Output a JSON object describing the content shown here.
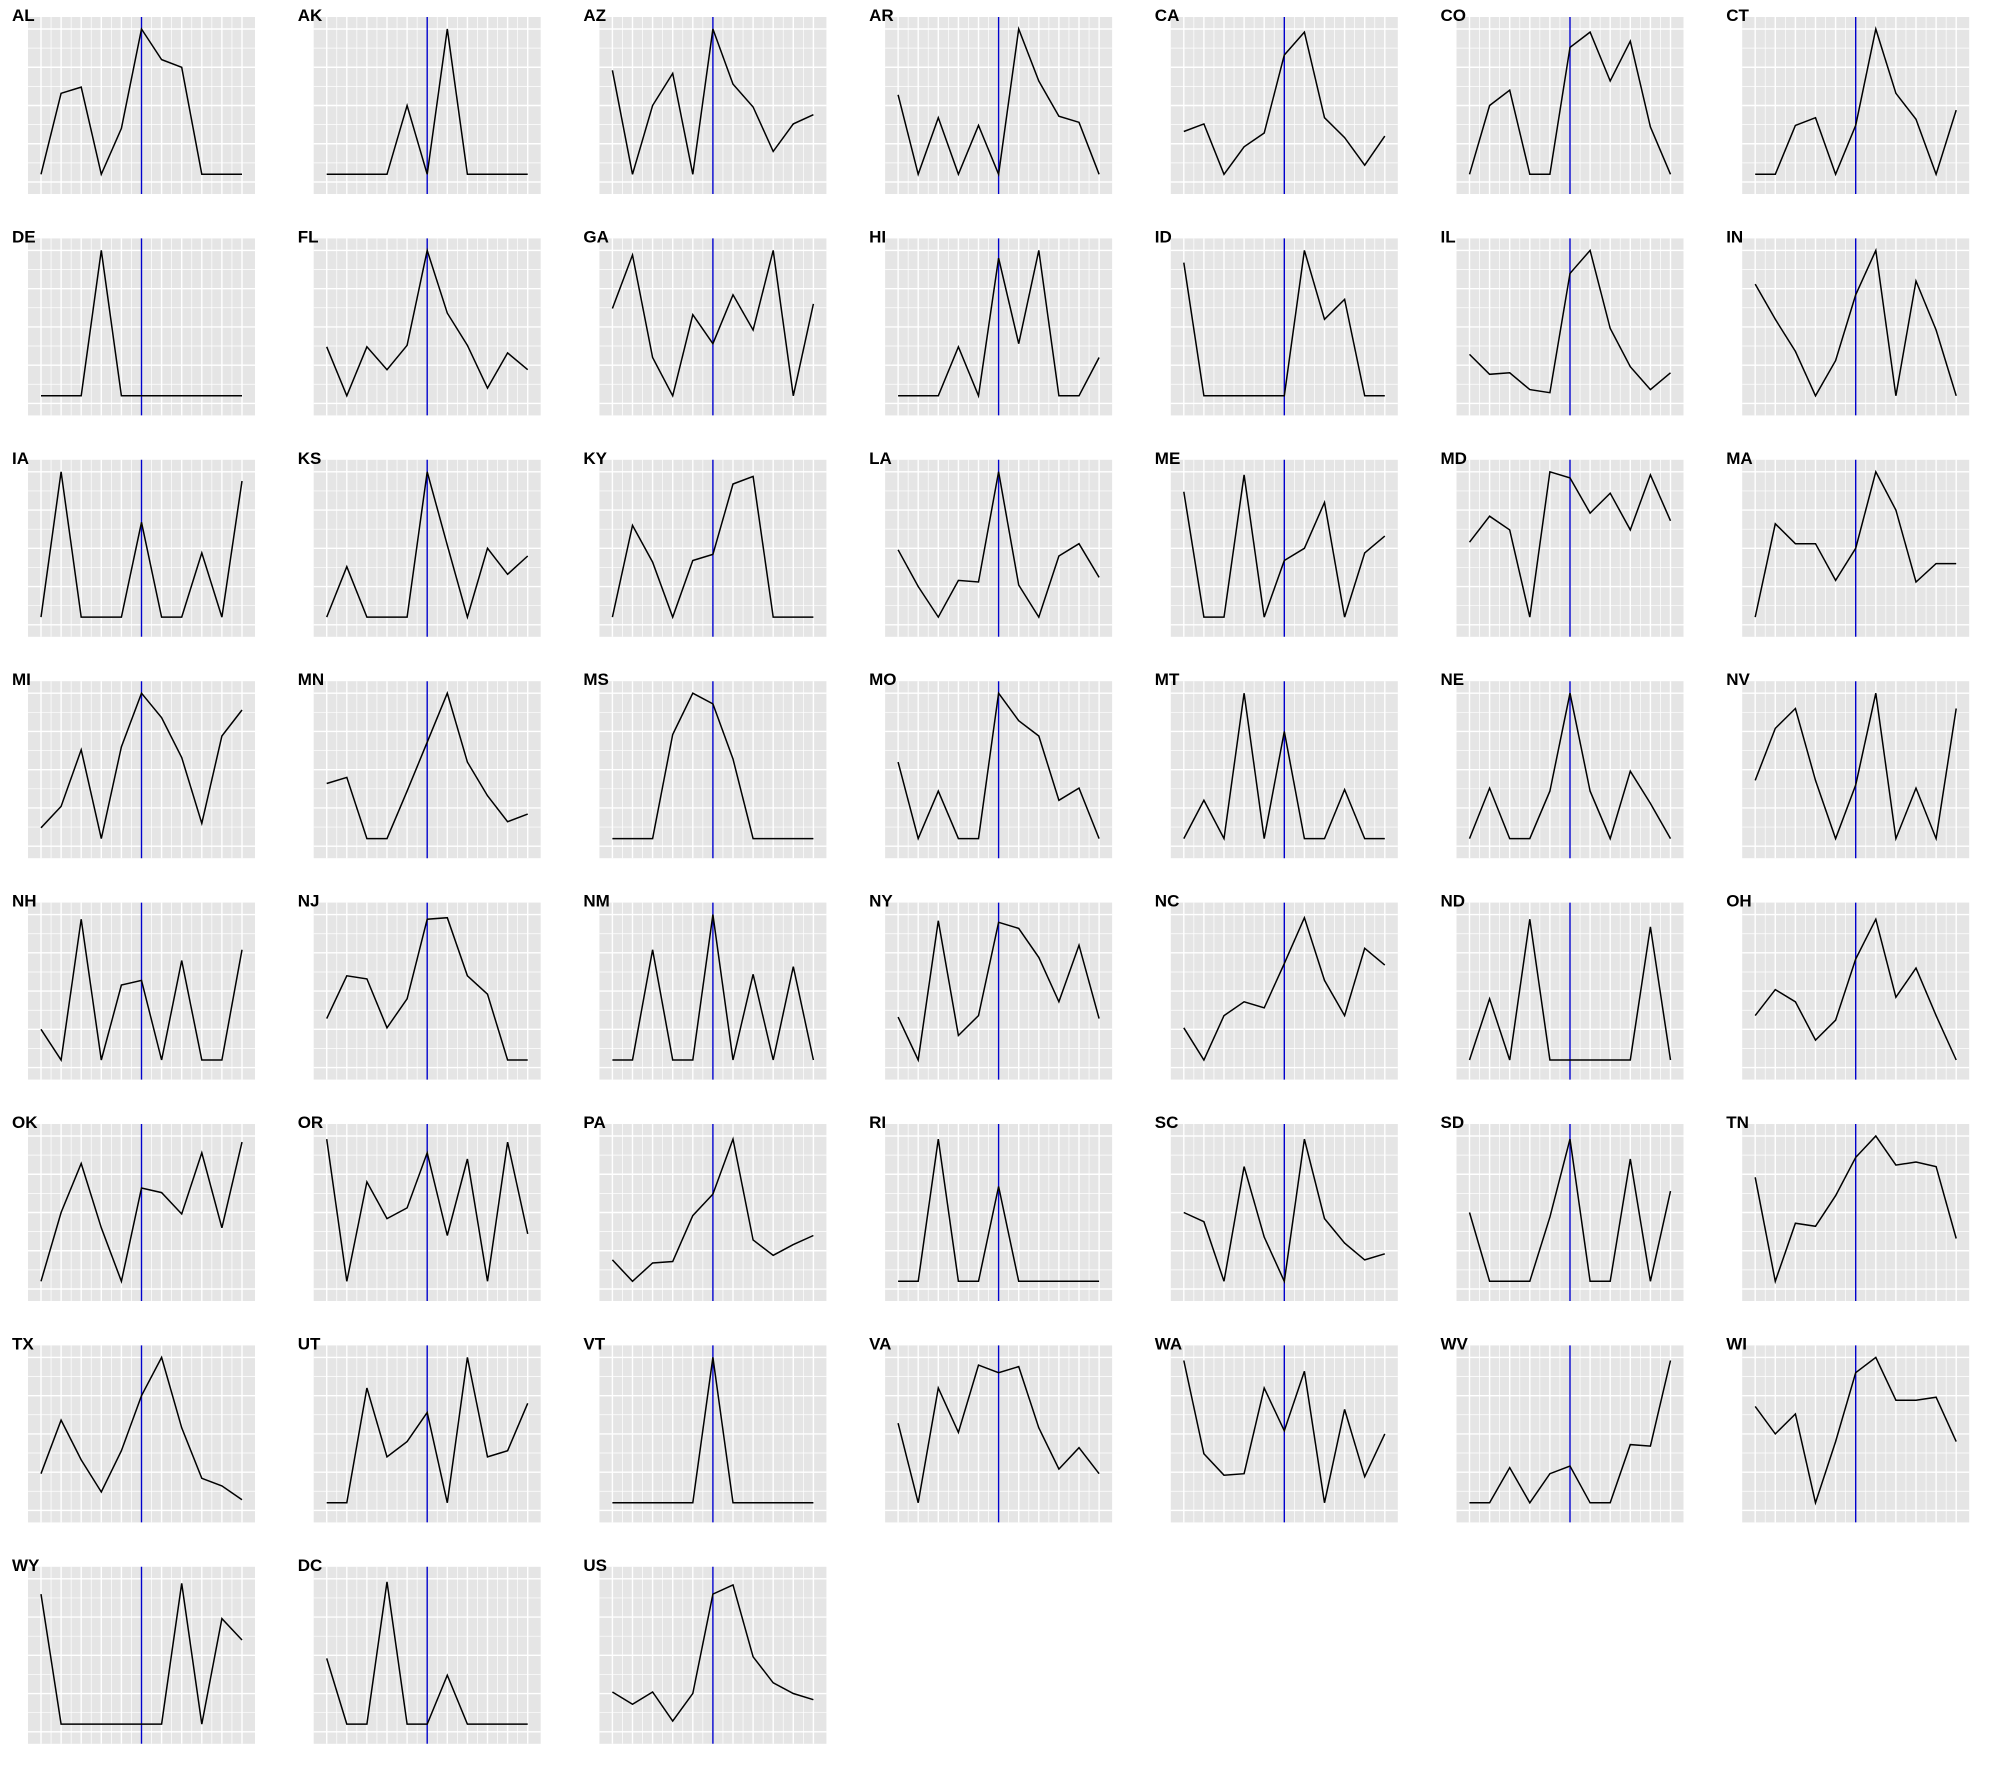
{
  "chart_data": {
    "type": "line",
    "title": "",
    "xlabel": "",
    "ylabel": "",
    "layout": "small-multiples",
    "grid": true,
    "x": [
      0,
      1,
      2,
      3,
      4,
      5,
      6,
      7,
      8,
      9,
      10
    ],
    "ylim": [
      0,
      1
    ],
    "reference_line_x": 5,
    "colors": {
      "panel_bg": "#e5e5e5",
      "gridline": "#ffffff",
      "series": "#000000",
      "reference_line": "#0000cc"
    },
    "panels": [
      {
        "name": "AL",
        "values": [
          0.05,
          0.58,
          0.62,
          0.05,
          0.35,
          1.0,
          0.8,
          0.75,
          0.05,
          0.05,
          0.05
        ]
      },
      {
        "name": "AK",
        "values": [
          0.05,
          0.05,
          0.05,
          0.05,
          0.5,
          0.05,
          1.0,
          0.05,
          0.05,
          0.05,
          0.05
        ]
      },
      {
        "name": "AZ",
        "values": [
          0.73,
          0.05,
          0.5,
          0.71,
          0.05,
          1.0,
          0.64,
          0.49,
          0.2,
          0.38,
          0.44
        ]
      },
      {
        "name": "AR",
        "values": [
          0.57,
          0.05,
          0.42,
          0.05,
          0.37,
          0.05,
          1.0,
          0.66,
          0.43,
          0.39,
          0.05
        ]
      },
      {
        "name": "CA",
        "values": [
          0.33,
          0.38,
          0.05,
          0.23,
          0.32,
          0.83,
          0.98,
          0.42,
          0.29,
          0.11,
          0.3
        ]
      },
      {
        "name": "CO",
        "values": [
          0.05,
          0.5,
          0.6,
          0.05,
          0.05,
          0.88,
          0.98,
          0.66,
          0.92,
          0.36,
          0.05
        ]
      },
      {
        "name": "CT",
        "values": [
          0.05,
          0.05,
          0.37,
          0.42,
          0.05,
          0.37,
          1.0,
          0.58,
          0.41,
          0.05,
          0.47
        ]
      },
      {
        "name": "DE",
        "values": [
          0.05,
          0.05,
          0.05,
          1.0,
          0.05,
          0.05,
          0.05,
          0.05,
          0.05,
          0.05,
          0.05
        ]
      },
      {
        "name": "FL",
        "values": [
          0.37,
          0.05,
          0.37,
          0.22,
          0.38,
          1.0,
          0.59,
          0.38,
          0.1,
          0.33,
          0.22
        ]
      },
      {
        "name": "GA",
        "values": [
          0.62,
          0.97,
          0.3,
          0.05,
          0.58,
          0.39,
          0.71,
          0.48,
          1.0,
          0.05,
          0.65
        ]
      },
      {
        "name": "HI",
        "values": [
          0.05,
          0.05,
          0.05,
          0.37,
          0.05,
          0.95,
          0.39,
          1.0,
          0.05,
          0.05,
          0.3
        ]
      },
      {
        "name": "ID",
        "values": [
          0.92,
          0.05,
          0.05,
          0.05,
          0.05,
          0.05,
          1.0,
          0.55,
          0.68,
          0.05,
          0.05
        ]
      },
      {
        "name": "IL",
        "values": [
          0.32,
          0.19,
          0.2,
          0.09,
          0.07,
          0.85,
          1.0,
          0.49,
          0.24,
          0.09,
          0.2
        ]
      },
      {
        "name": "IN",
        "values": [
          0.78,
          0.55,
          0.34,
          0.05,
          0.28,
          0.71,
          1.0,
          0.05,
          0.8,
          0.48,
          0.05
        ]
      },
      {
        "name": "IA",
        "values": [
          0.05,
          1.0,
          0.05,
          0.05,
          0.05,
          0.67,
          0.05,
          0.05,
          0.47,
          0.05,
          0.94
        ]
      },
      {
        "name": "KS",
        "values": [
          0.05,
          0.38,
          0.05,
          0.05,
          0.05,
          1.0,
          0.52,
          0.05,
          0.5,
          0.33,
          0.45
        ]
      },
      {
        "name": "KY",
        "values": [
          0.05,
          0.65,
          0.41,
          0.05,
          0.42,
          0.46,
          0.92,
          0.97,
          0.05,
          0.05,
          0.05
        ]
      },
      {
        "name": "LA",
        "values": [
          0.49,
          0.25,
          0.05,
          0.29,
          0.28,
          1.0,
          0.26,
          0.05,
          0.45,
          0.53,
          0.31
        ]
      },
      {
        "name": "ME",
        "values": [
          0.87,
          0.05,
          0.05,
          0.98,
          0.05,
          0.42,
          0.5,
          0.8,
          0.05,
          0.47,
          0.58
        ]
      },
      {
        "name": "MD",
        "values": [
          0.54,
          0.71,
          0.62,
          0.05,
          1.0,
          0.96,
          0.73,
          0.86,
          0.62,
          0.98,
          0.68
        ]
      },
      {
        "name": "MA",
        "values": [
          0.05,
          0.66,
          0.53,
          0.53,
          0.29,
          0.5,
          1.0,
          0.75,
          0.28,
          0.4,
          0.4
        ]
      },
      {
        "name": "MI",
        "values": [
          0.12,
          0.26,
          0.63,
          0.05,
          0.65,
          1.0,
          0.84,
          0.58,
          0.15,
          0.72,
          0.89
        ]
      },
      {
        "name": "MN",
        "values": [
          0.41,
          0.45,
          0.05,
          0.05,
          0.36,
          0.68,
          1.0,
          0.55,
          0.33,
          0.16,
          0.21
        ]
      },
      {
        "name": "MS",
        "values": [
          0.05,
          0.05,
          0.05,
          0.73,
          1.0,
          0.93,
          0.57,
          0.05,
          0.05,
          0.05,
          0.05
        ]
      },
      {
        "name": "MO",
        "values": [
          0.55,
          0.05,
          0.36,
          0.05,
          0.05,
          1.0,
          0.82,
          0.72,
          0.3,
          0.38,
          0.05
        ]
      },
      {
        "name": "MT",
        "values": [
          0.05,
          0.3,
          0.05,
          1.0,
          0.05,
          0.75,
          0.05,
          0.05,
          0.37,
          0.05,
          0.05
        ]
      },
      {
        "name": "NE",
        "values": [
          0.05,
          0.38,
          0.05,
          0.05,
          0.36,
          1.0,
          0.36,
          0.05,
          0.49,
          0.28,
          0.05
        ]
      },
      {
        "name": "NV",
        "values": [
          0.43,
          0.77,
          0.9,
          0.43,
          0.05,
          0.4,
          1.0,
          0.05,
          0.38,
          0.05,
          0.9
        ]
      },
      {
        "name": "NH",
        "values": [
          0.25,
          0.05,
          0.97,
          0.05,
          0.54,
          0.57,
          0.05,
          0.7,
          0.05,
          0.05,
          0.77
        ]
      },
      {
        "name": "NJ",
        "values": [
          0.32,
          0.6,
          0.58,
          0.26,
          0.45,
          0.97,
          0.98,
          0.6,
          0.48,
          0.05,
          0.05
        ]
      },
      {
        "name": "NM",
        "values": [
          0.05,
          0.05,
          0.77,
          0.05,
          0.05,
          1.0,
          0.05,
          0.61,
          0.05,
          0.66,
          0.05
        ]
      },
      {
        "name": "NY",
        "values": [
          0.33,
          0.05,
          0.96,
          0.21,
          0.34,
          0.95,
          0.91,
          0.72,
          0.43,
          0.8,
          0.32
        ]
      },
      {
        "name": "NC",
        "values": [
          0.26,
          0.05,
          0.34,
          0.43,
          0.39,
          0.68,
          0.98,
          0.57,
          0.34,
          0.78,
          0.67
        ]
      },
      {
        "name": "ND",
        "values": [
          0.05,
          0.45,
          0.05,
          0.97,
          0.05,
          0.05,
          0.05,
          0.05,
          0.05,
          0.92,
          0.05
        ]
      },
      {
        "name": "OH",
        "values": [
          0.34,
          0.51,
          0.43,
          0.18,
          0.31,
          0.71,
          0.97,
          0.46,
          0.65,
          0.34,
          0.05
        ]
      },
      {
        "name": "OK",
        "values": [
          0.05,
          0.5,
          0.82,
          0.4,
          0.05,
          0.66,
          0.63,
          0.49,
          0.89,
          0.4,
          0.96
        ]
      },
      {
        "name": "OR",
        "values": [
          0.98,
          0.05,
          0.7,
          0.46,
          0.53,
          0.89,
          0.35,
          0.85,
          0.05,
          0.96,
          0.36
        ]
      },
      {
        "name": "PA",
        "values": [
          0.19,
          0.05,
          0.17,
          0.18,
          0.48,
          0.62,
          0.98,
          0.32,
          0.22,
          0.29,
          0.35
        ]
      },
      {
        "name": "RI",
        "values": [
          0.05,
          0.05,
          0.98,
          0.05,
          0.05,
          0.67,
          0.05,
          0.05,
          0.05,
          0.05,
          0.05
        ]
      },
      {
        "name": "SC",
        "values": [
          0.5,
          0.44,
          0.05,
          0.8,
          0.34,
          0.05,
          0.98,
          0.46,
          0.3,
          0.19,
          0.23
        ]
      },
      {
        "name": "SD",
        "values": [
          0.5,
          0.05,
          0.05,
          0.05,
          0.47,
          0.98,
          0.05,
          0.05,
          0.85,
          0.05,
          0.64
        ]
      },
      {
        "name": "TN",
        "values": [
          0.73,
          0.05,
          0.43,
          0.41,
          0.61,
          0.86,
          1.0,
          0.81,
          0.83,
          0.8,
          0.33
        ]
      },
      {
        "name": "TX",
        "values": [
          0.24,
          0.59,
          0.33,
          0.12,
          0.39,
          0.75,
          1.0,
          0.54,
          0.21,
          0.16,
          0.07
        ]
      },
      {
        "name": "UT",
        "values": [
          0.05,
          0.05,
          0.8,
          0.35,
          0.45,
          0.64,
          0.05,
          1.0,
          0.35,
          0.39,
          0.7
        ]
      },
      {
        "name": "VT",
        "values": [
          0.05,
          0.05,
          0.05,
          0.05,
          0.05,
          1.0,
          0.05,
          0.05,
          0.05,
          0.05,
          0.05
        ]
      },
      {
        "name": "VA",
        "values": [
          0.57,
          0.05,
          0.8,
          0.51,
          0.95,
          0.9,
          0.94,
          0.54,
          0.27,
          0.41,
          0.24
        ]
      },
      {
        "name": "WA",
        "values": [
          0.98,
          0.37,
          0.23,
          0.24,
          0.8,
          0.52,
          0.91,
          0.05,
          0.66,
          0.22,
          0.5
        ]
      },
      {
        "name": "WV",
        "values": [
          0.05,
          0.05,
          0.28,
          0.05,
          0.24,
          0.29,
          0.05,
          0.05,
          0.43,
          0.42,
          0.98
        ]
      },
      {
        "name": "WI",
        "values": [
          0.68,
          0.5,
          0.63,
          0.05,
          0.45,
          0.9,
          1.0,
          0.72,
          0.72,
          0.74,
          0.45
        ]
      },
      {
        "name": "WY",
        "values": [
          0.9,
          0.05,
          0.05,
          0.05,
          0.05,
          0.05,
          0.05,
          0.97,
          0.05,
          0.74,
          0.6
        ]
      },
      {
        "name": "DC",
        "values": [
          0.48,
          0.05,
          0.05,
          0.98,
          0.05,
          0.05,
          0.37,
          0.05,
          0.05,
          0.05,
          0.05
        ]
      },
      {
        "name": "US",
        "values": [
          0.26,
          0.18,
          0.26,
          0.07,
          0.25,
          0.9,
          0.96,
          0.49,
          0.32,
          0.25,
          0.21
        ]
      }
    ]
  }
}
